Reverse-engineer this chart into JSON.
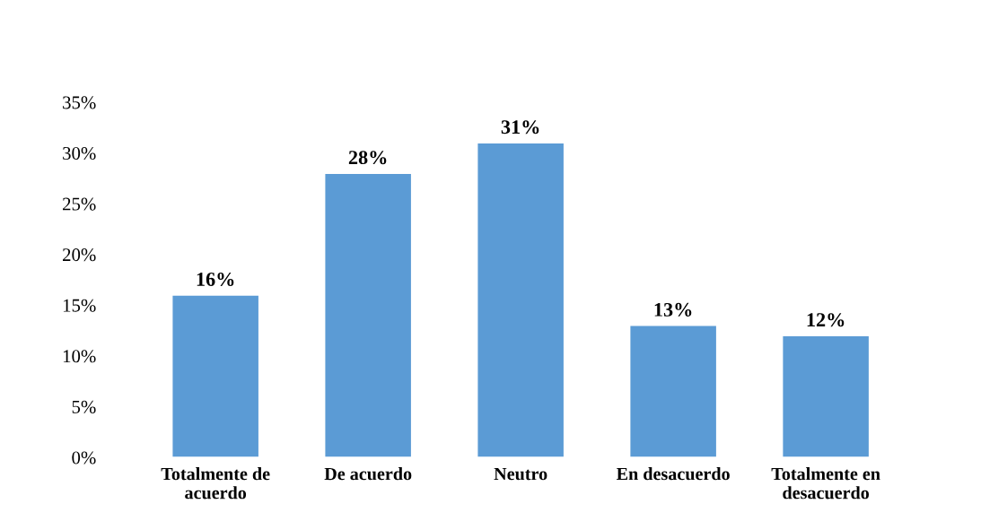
{
  "chart_data": {
    "type": "bar",
    "categories": [
      "Totalmente de\nacuerdo",
      "De acuerdo",
      "Neutro",
      "En desacuerdo",
      "Totalmente en\ndesacuerdo"
    ],
    "values": [
      16,
      28,
      31,
      13,
      12
    ],
    "value_labels": [
      "16%",
      "28%",
      "31%",
      "13%",
      "12%"
    ],
    "color": "#5b9bd5",
    "ylim": [
      0,
      35
    ],
    "yticks": [
      {
        "value": 0,
        "label": "0%"
      },
      {
        "value": 5,
        "label": "5%"
      },
      {
        "value": 10,
        "label": "10%"
      },
      {
        "value": 15,
        "label": "15%"
      },
      {
        "value": 20,
        "label": "20%"
      },
      {
        "value": 25,
        "label": "25%"
      },
      {
        "value": 30,
        "label": "30%"
      },
      {
        "value": 35,
        "label": "35%"
      }
    ],
    "grid": false
  }
}
